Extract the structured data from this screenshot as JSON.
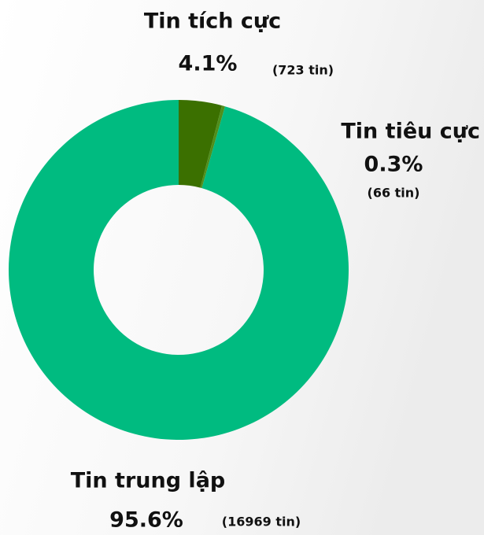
{
  "chart_data": {
    "type": "pie",
    "donut": true,
    "categories": [
      "Tin tích cực",
      "Tin tiêu cực",
      "Tin trung lập"
    ],
    "values": [
      4.1,
      0.3,
      95.6
    ],
    "value_labels": [
      "4.1%",
      "0.3%",
      "95.6%"
    ],
    "count_labels": [
      "(723 tin)",
      "(66 tin)",
      "(16969 tin)"
    ],
    "colors": [
      "#3b7000",
      "#4f8f1c",
      "#00bb80"
    ]
  }
}
